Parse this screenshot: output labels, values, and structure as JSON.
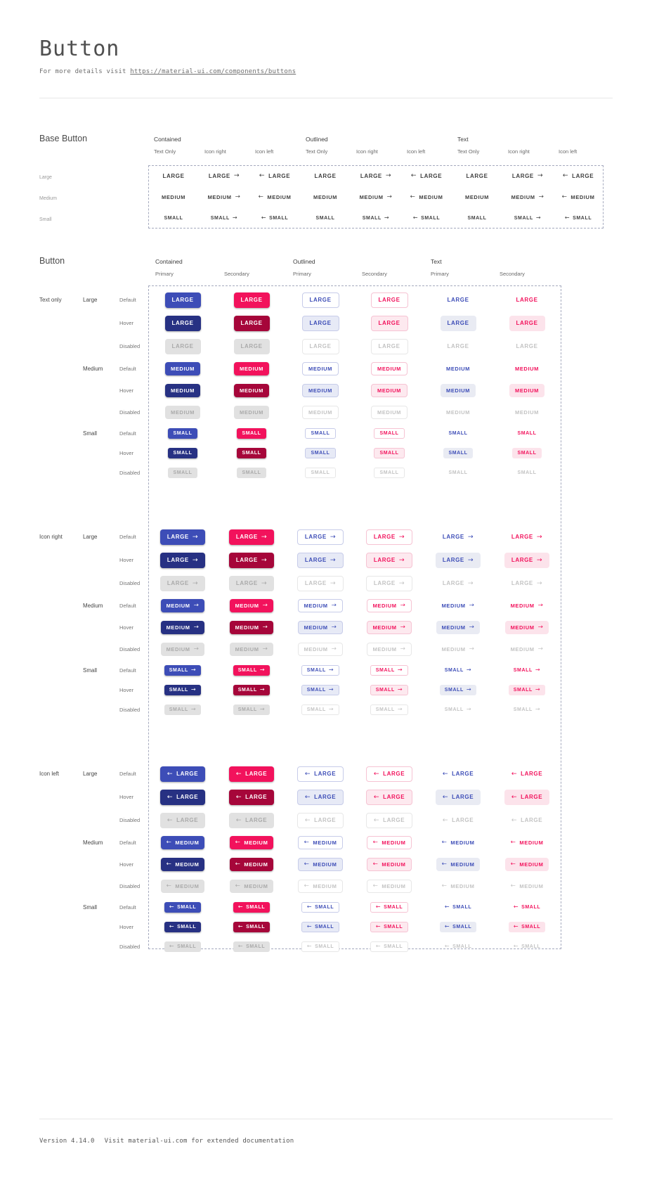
{
  "page": {
    "title": "Button",
    "subtitle_prefix": "For more details visit ",
    "subtitle_link": "https://material-ui.com/components/buttons",
    "footer": {
      "version": "Version 4.14.0",
      "note": "Visit material-ui.com for extended documentation"
    }
  },
  "icons": {
    "arrow-right": "→",
    "arrow-left": "←"
  },
  "base_section": {
    "heading": "Base Button",
    "groups": [
      "Contained",
      "Outlined",
      "Text"
    ],
    "subcolumns": [
      "Text Only",
      "Icon right",
      "Icon left"
    ],
    "icon_variants": [
      "none",
      "right",
      "left"
    ],
    "rows": [
      {
        "label": "Large",
        "text": "LARGE"
      },
      {
        "label": "Medium",
        "text": "MEDIUM"
      },
      {
        "label": "Small",
        "text": "SMALL"
      }
    ]
  },
  "button_section": {
    "heading": "Button",
    "groups": [
      "Contained",
      "Outlined",
      "Text"
    ],
    "subcolumns": [
      "Primary",
      "Secondary"
    ],
    "icon_groups": [
      {
        "label": "Text only",
        "icon": "none"
      },
      {
        "label": "Icon right",
        "icon": "right"
      },
      {
        "label": "Icon left",
        "icon": "left"
      }
    ],
    "sizes": [
      {
        "label": "Large",
        "text": "LARGE"
      },
      {
        "label": "Medium",
        "text": "MEDIUM"
      },
      {
        "label": "Small",
        "text": "SMALL"
      }
    ],
    "states": [
      "Default",
      "Hover",
      "Disabled"
    ],
    "columns": [
      {
        "variant": "contained",
        "color": "primary"
      },
      {
        "variant": "contained",
        "color": "secondary"
      },
      {
        "variant": "outlined",
        "color": "primary"
      },
      {
        "variant": "outlined",
        "color": "secondary"
      },
      {
        "variant": "text",
        "color": "primary"
      },
      {
        "variant": "text",
        "color": "secondary"
      }
    ]
  },
  "colors": {
    "primary": "#3D4DB7",
    "primary-dark": "#273183",
    "secondary": "#F2125C",
    "secondary-dark": "#A6063A",
    "primary-border": "#C7CCE9",
    "primary-tint": "#E7EAF6",
    "primary-hover-bg": "#E9EBF3",
    "secondary-border": "#F6C3D3",
    "secondary-tint": "#FDE9EF",
    "secondary-hover-bg": "#FCE3EB",
    "disabled-bg": "#E1E1E1",
    "disabled-text": "#AAAAAA",
    "disabled-light-text": "#C3C3C3",
    "disabled-border": "#E7E7E7",
    "dashed-border": "#A5AABE",
    "base-text": "#3F3F3F"
  }
}
